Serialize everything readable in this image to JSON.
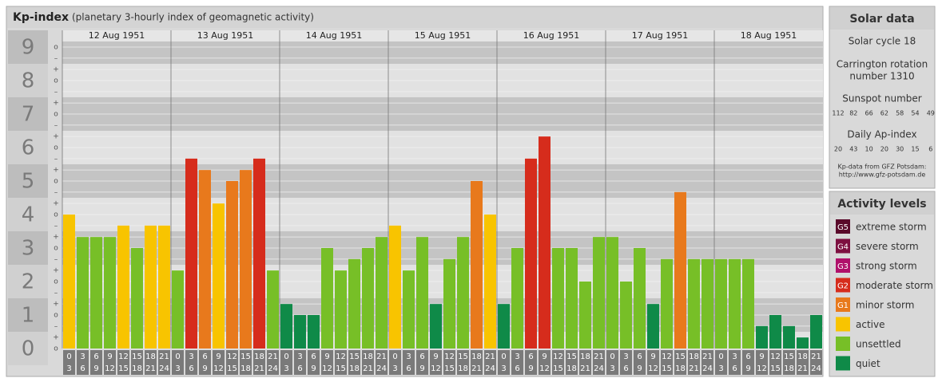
{
  "chart_data": {
    "type": "bar",
    "title": "Kp-index",
    "subtitle": "(planetary 3-hourly index of geomagnetic activity)",
    "days": [
      "12 Aug 1951",
      "13 Aug 1951",
      "14 Aug 1951",
      "15 Aug 1951",
      "16 Aug 1951",
      "17 Aug 1951",
      "18 Aug 1951"
    ],
    "hour_labels": [
      [
        "0",
        "3"
      ],
      [
        "3",
        "6"
      ],
      [
        "6",
        "9"
      ],
      [
        "9",
        "12"
      ],
      [
        "12",
        "15"
      ],
      [
        "15",
        "18"
      ],
      [
        "18",
        "21"
      ],
      [
        "21",
        "24"
      ]
    ],
    "values": [
      [
        4,
        3.33,
        3.33,
        3.33,
        3.67,
        3,
        3.67,
        3.67
      ],
      [
        2.33,
        5.67,
        5.33,
        4.33,
        5,
        5.33,
        5.67,
        2.33
      ],
      [
        1.33,
        1,
        1,
        3,
        2.33,
        2.67,
        3,
        3.33
      ],
      [
        3.67,
        2.33,
        3.33,
        1.33,
        2.67,
        3.33,
        5,
        4
      ],
      [
        1.33,
        3,
        5.67,
        6.33,
        3,
        3,
        2,
        3.33
      ],
      [
        3.33,
        2,
        3,
        1.33,
        2.67,
        4.67,
        2.67,
        2.67
      ],
      [
        2.67,
        2.67,
        2.67,
        0.67,
        1,
        0.67,
        0.33,
        1
      ]
    ],
    "colors": [
      [
        "#f8c400",
        "#77bf27",
        "#77bf27",
        "#77bf27",
        "#f8c400",
        "#77bf27",
        "#f8c400",
        "#f8c400"
      ],
      [
        "#77bf27",
        "#d62c1c",
        "#e8791c",
        "#f8c400",
        "#e8791c",
        "#e8791c",
        "#d62c1c",
        "#77bf27"
      ],
      [
        "#0f8a48",
        "#0f8a48",
        "#0f8a48",
        "#77bf27",
        "#77bf27",
        "#77bf27",
        "#77bf27",
        "#77bf27"
      ],
      [
        "#f8c400",
        "#77bf27",
        "#77bf27",
        "#0f8a48",
        "#77bf27",
        "#77bf27",
        "#e8791c",
        "#f8c400"
      ],
      [
        "#0f8a48",
        "#77bf27",
        "#d62c1c",
        "#d62c1c",
        "#77bf27",
        "#77bf27",
        "#77bf27",
        "#77bf27"
      ],
      [
        "#77bf27",
        "#77bf27",
        "#77bf27",
        "#0f8a48",
        "#77bf27",
        "#e8791c",
        "#77bf27",
        "#77bf27"
      ],
      [
        "#77bf27",
        "#77bf27",
        "#77bf27",
        "#0f8a48",
        "#0f8a48",
        "#0f8a48",
        "#0f8a48",
        "#0f8a48"
      ]
    ],
    "ylim": [
      0,
      9.5
    ],
    "yticks": [
      0,
      1,
      2,
      3,
      4,
      5,
      6,
      7,
      8,
      9
    ],
    "minor_ticks": [
      {
        "value": 0,
        "label": "o"
      },
      {
        "value": 0.33,
        "label": "+"
      },
      {
        "value": 0.67,
        "label": "–"
      },
      {
        "value": 1,
        "label": "o"
      },
      {
        "value": 1.33,
        "label": "+"
      },
      {
        "value": 1.67,
        "label": "–"
      },
      {
        "value": 2,
        "label": "o"
      },
      {
        "value": 2.33,
        "label": "+"
      },
      {
        "value": 2.67,
        "label": "–"
      },
      {
        "value": 3,
        "label": "o"
      },
      {
        "value": 3.33,
        "label": "+"
      },
      {
        "value": 3.67,
        "label": "–"
      },
      {
        "value": 4,
        "label": "o"
      },
      {
        "value": 4.33,
        "label": "+"
      },
      {
        "value": 4.67,
        "label": "–"
      },
      {
        "value": 5,
        "label": "o"
      },
      {
        "value": 5.33,
        "label": "+"
      },
      {
        "value": 5.67,
        "label": "–"
      },
      {
        "value": 6,
        "label": "o"
      },
      {
        "value": 6.33,
        "label": "+"
      },
      {
        "value": 6.67,
        "label": "–"
      },
      {
        "value": 7,
        "label": "o"
      },
      {
        "value": 7.33,
        "label": "+"
      },
      {
        "value": 7.67,
        "label": "–"
      },
      {
        "value": 8,
        "label": "o"
      },
      {
        "value": 8.33,
        "label": "+"
      },
      {
        "value": 8.67,
        "label": "–"
      },
      {
        "value": 9,
        "label": "o"
      }
    ]
  },
  "solar_data": {
    "title": "Solar data",
    "cycle": "Solar cycle 18",
    "carrington": [
      "Carrington rotation",
      "number 1310"
    ],
    "sunspot_title": "Sunspot number",
    "sunspot": [
      112,
      82,
      66,
      62,
      58,
      54,
      49
    ],
    "ap_title": "Daily Ap-index",
    "ap": [
      20,
      43,
      10,
      20,
      30,
      15,
      6
    ],
    "source": [
      "Kp-data from GFZ Potsdam:",
      "http://www.gfz-potsdam.de"
    ]
  },
  "activity_levels": {
    "title": "Activity levels",
    "items": [
      {
        "code": "G5",
        "name": "extreme storm",
        "color": "#5a0a2a"
      },
      {
        "code": "G4",
        "name": "severe storm",
        "color": "#7d1040"
      },
      {
        "code": "G3",
        "name": "strong storm",
        "color": "#b0106a"
      },
      {
        "code": "G2",
        "name": "moderate storm",
        "color": "#d62c1c"
      },
      {
        "code": "G1",
        "name": "minor storm",
        "color": "#e8791c"
      },
      {
        "code": null,
        "name": "active",
        "color": "#f8c400"
      },
      {
        "code": null,
        "name": "unsettled",
        "color": "#77bf27"
      },
      {
        "code": null,
        "name": "quiet",
        "color": "#0f8a48"
      }
    ]
  }
}
